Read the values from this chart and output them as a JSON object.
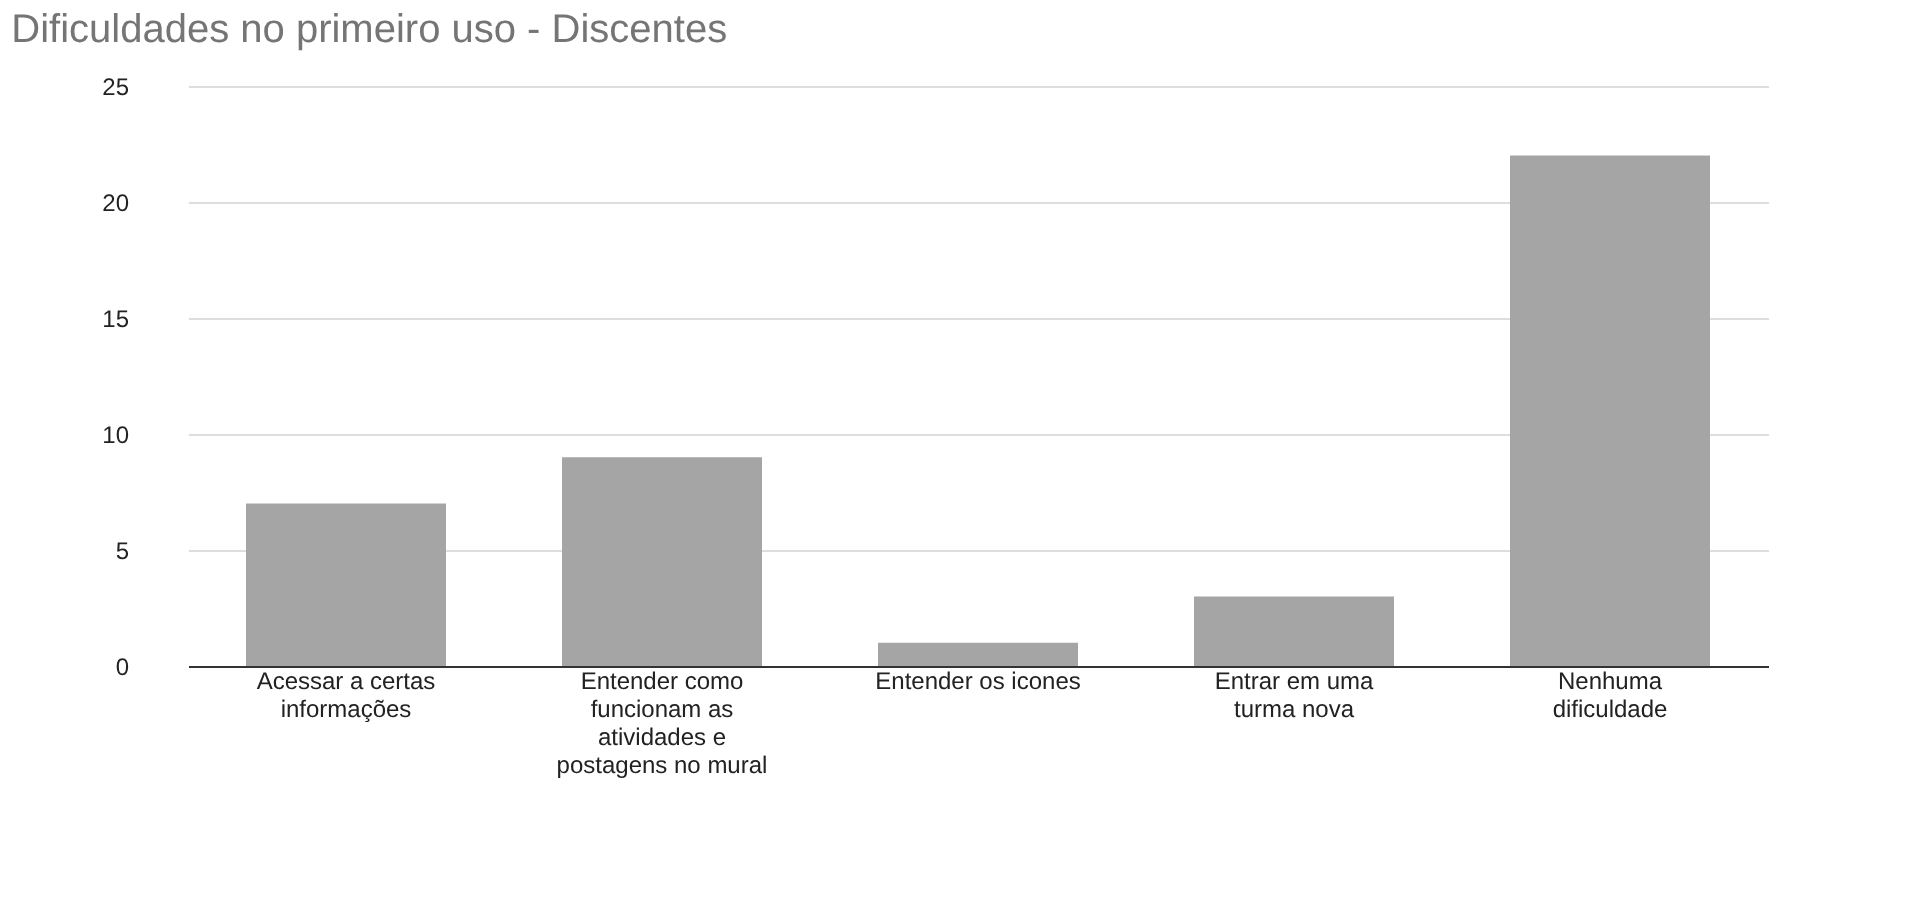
{
  "chart_data": {
    "type": "bar",
    "title": "Dificuldades no primeiro uso - Discentes",
    "categories": [
      "Acessar a certas informações",
      "Entender como funcionam as atividades e postagens no mural",
      "Entender os icones",
      "Entrar em uma turma nova",
      "Nenhuma dificuldade"
    ],
    "values": [
      7,
      9,
      1,
      3,
      22
    ],
    "color": "#a5a5a5",
    "ylim": [
      0,
      25
    ],
    "yticks": [
      0,
      5,
      10,
      15,
      20,
      25
    ],
    "grid": "y"
  }
}
